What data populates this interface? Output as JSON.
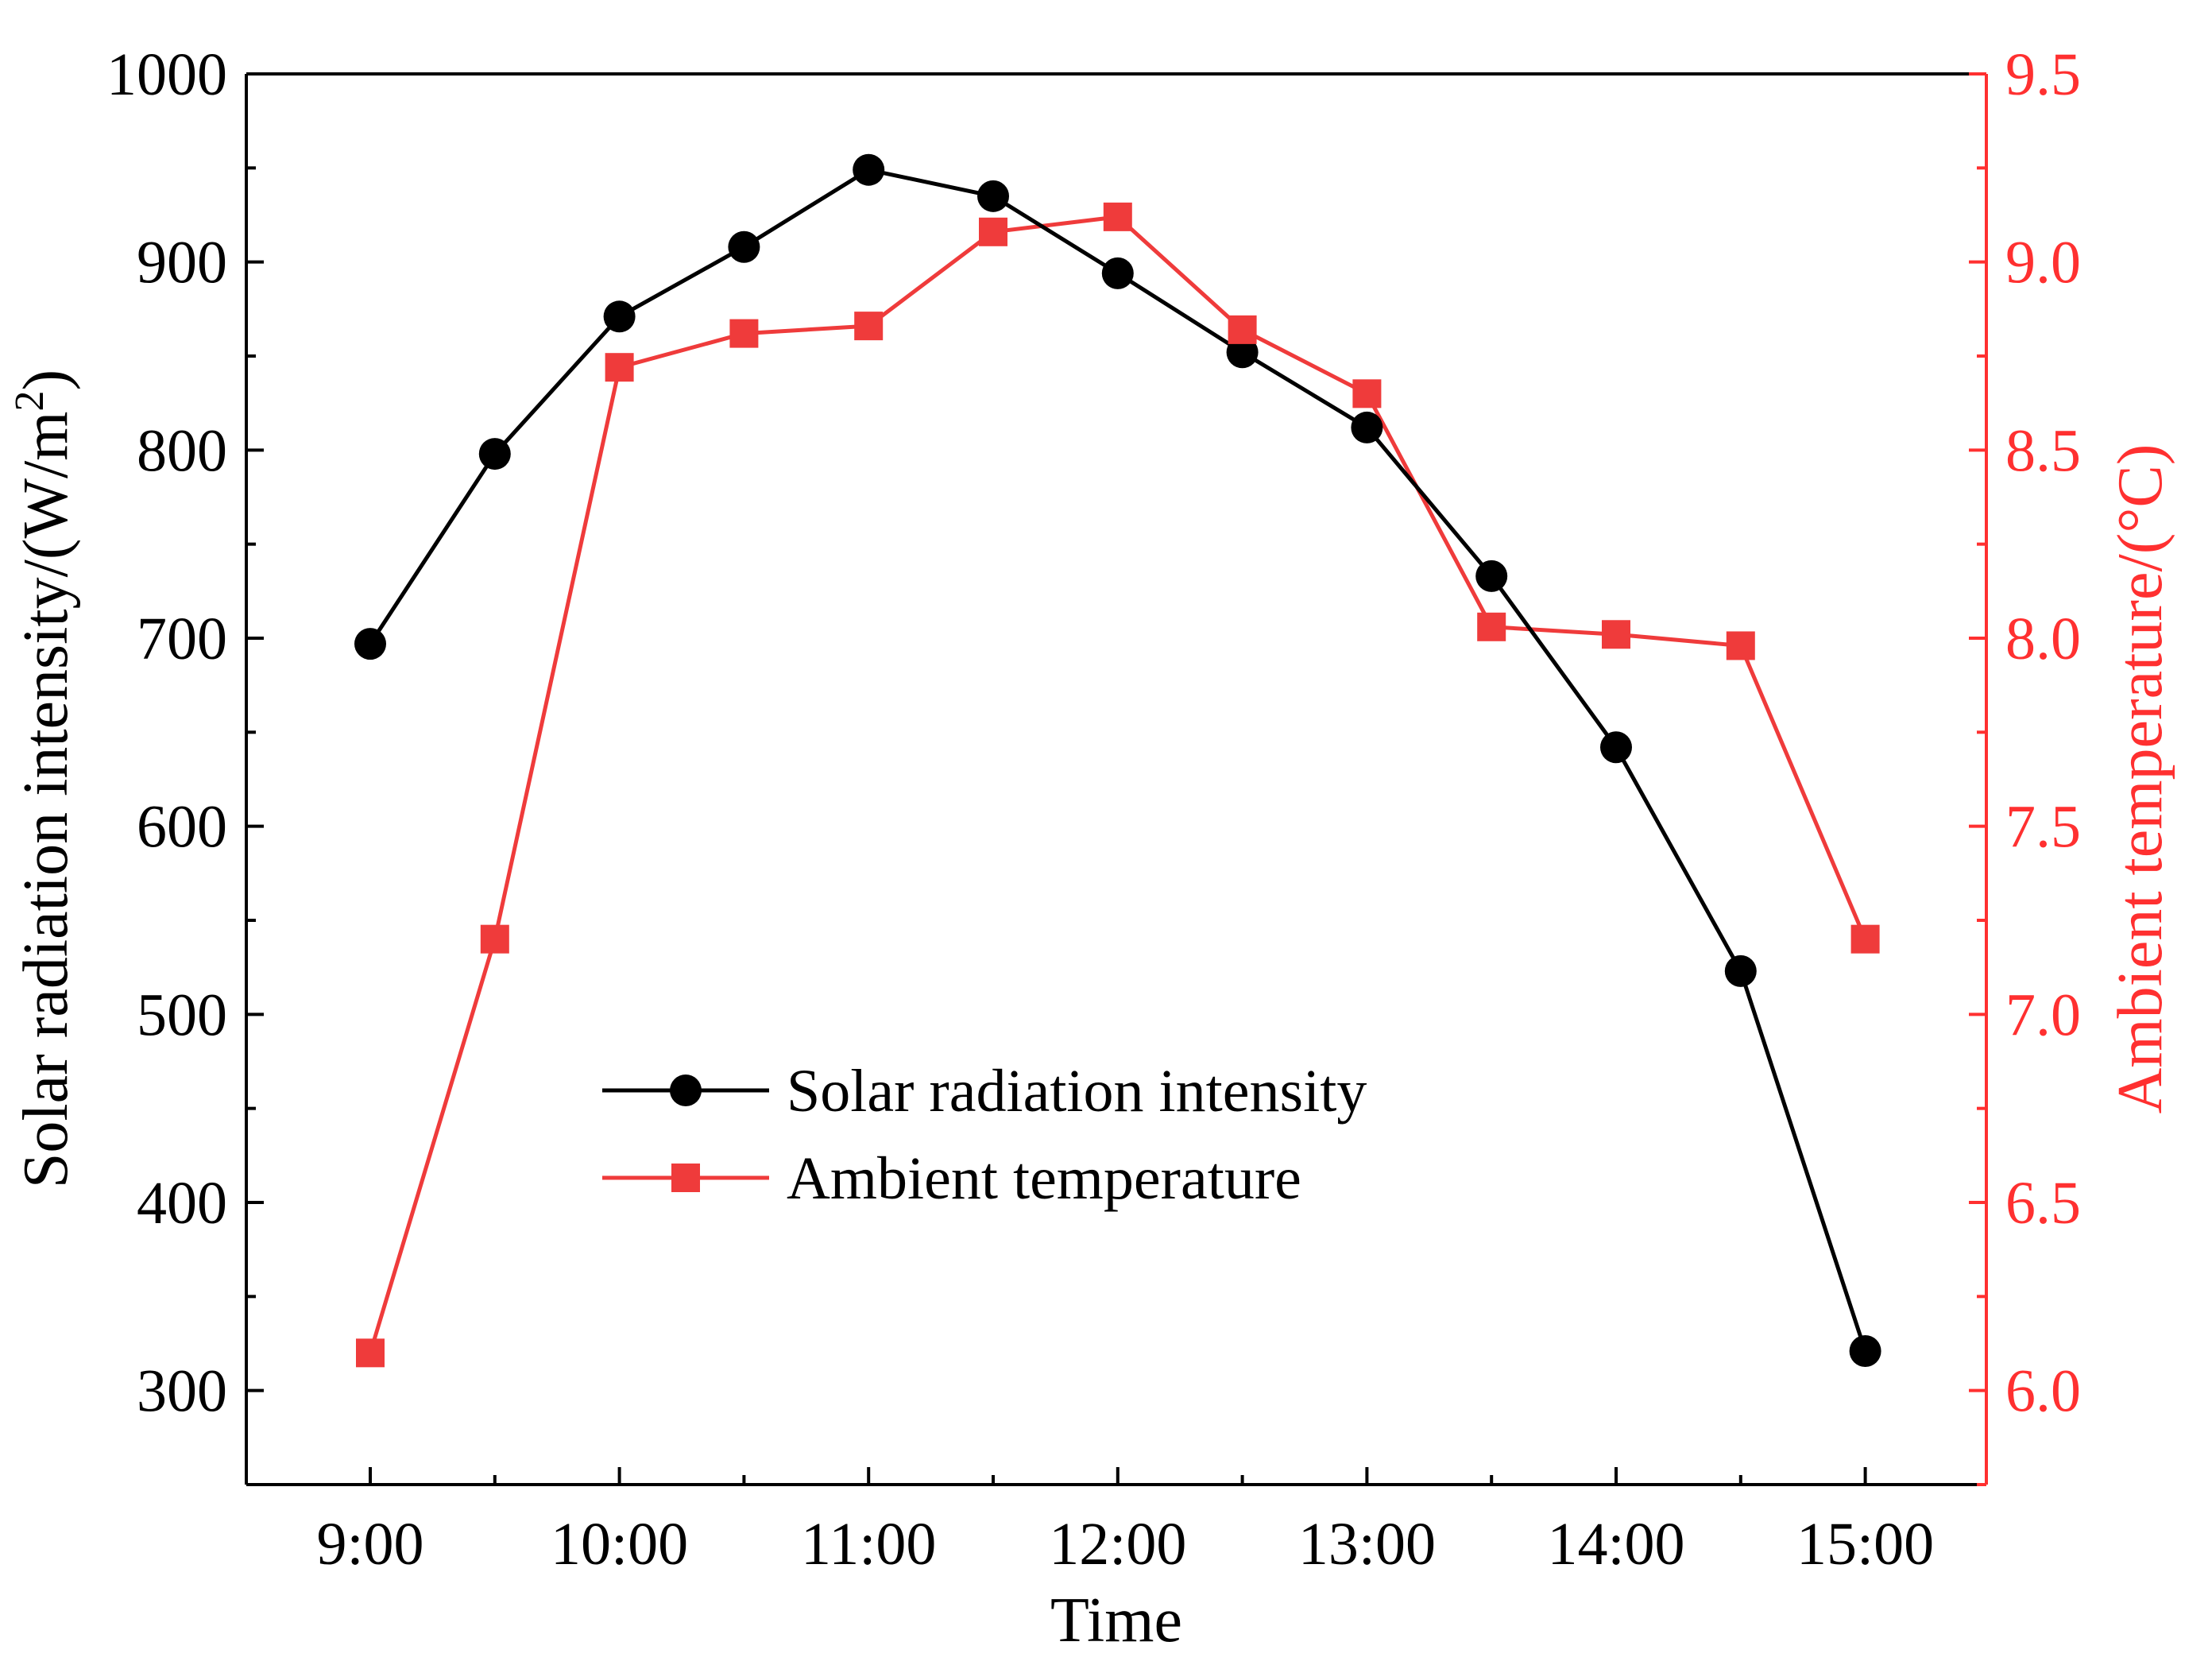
{
  "colors": {
    "left_axis": "#000000",
    "right_axis": "#ff3030",
    "series_black": "#000000",
    "series_red": "#ef3b3b"
  },
  "chart_data": {
    "type": "line",
    "xlabel": "Time",
    "ylabel_left_main": "Solar radiation intensity/(W/m",
    "ylabel_left_sup": "2",
    "ylabel_left_close": ")",
    "ylabel_right": "Ambient temperature/(°C)",
    "x": [
      "9:00",
      "9:30",
      "10:00",
      "10:30",
      "11:00",
      "11:30",
      "12:00",
      "12:30",
      "13:00",
      "13:30",
      "14:00",
      "14:30",
      "15:00"
    ],
    "x_tick_labels": [
      "9:00",
      "10:00",
      "11:00",
      "12:00",
      "13:00",
      "14:00",
      "15:00"
    ],
    "y_left_range": [
      250,
      1000
    ],
    "y_left_ticks": [
      "300",
      "400",
      "500",
      "600",
      "700",
      "800",
      "900",
      "1000"
    ],
    "y_right_range": [
      5.75,
      9.5
    ],
    "y_right_ticks": [
      "6.0",
      "6.5",
      "7.0",
      "7.5",
      "8.0",
      "8.5",
      "9.0",
      "9.5"
    ],
    "legend_position": "center",
    "series": [
      {
        "name": "Solar radiation intensity",
        "axis": "left",
        "marker": "circle",
        "values": [
          697,
          798,
          871,
          908,
          949,
          935,
          894,
          852,
          812,
          733,
          642,
          523,
          321
        ]
      },
      {
        "name": "Ambient temperature",
        "axis": "right",
        "marker": "square",
        "values": [
          6.1,
          7.2,
          8.72,
          8.81,
          8.83,
          9.08,
          9.12,
          8.82,
          8.65,
          8.03,
          8.01,
          7.98,
          7.2
        ]
      }
    ]
  }
}
